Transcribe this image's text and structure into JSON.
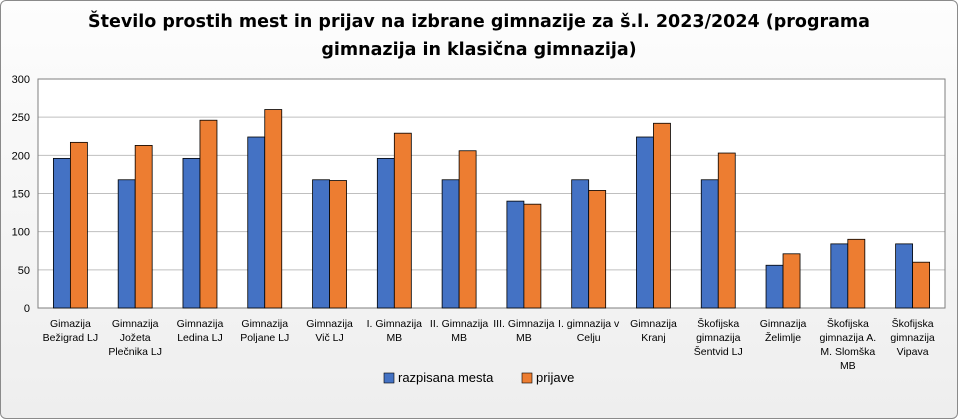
{
  "chart_data": {
    "type": "bar",
    "title_lines": [
      "Število prostih mest in prijav na izbrane gimnazije za š.l. 2023/2024 (programa",
      "gimnazija  in klasična gimnazija)"
    ],
    "categories": [
      [
        "Gimazija",
        "Bežigrad LJ"
      ],
      [
        "Gimnazija",
        "Jožeta",
        "Plečnika LJ"
      ],
      [
        "Gimnazija",
        "Ledina LJ"
      ],
      [
        "Gimnazija",
        "Poljane LJ"
      ],
      [
        "Gimnazija",
        "Vič LJ"
      ],
      [
        "I. Gimnazija",
        "MB"
      ],
      [
        "II. Gimnazija",
        "MB"
      ],
      [
        "III. Gimnazija",
        "MB"
      ],
      [
        "I. gimnazija v",
        "Celju"
      ],
      [
        "Gimnazija",
        "Kranj"
      ],
      [
        "Škofijska",
        "gimnazija",
        "Šentvid LJ"
      ],
      [
        "Gimnazija",
        "Želimlje"
      ],
      [
        "Škofijska",
        "gimnazija A.",
        "M. Slomška",
        "MB"
      ],
      [
        "Škofijska",
        "gimnazija",
        "Vipava"
      ]
    ],
    "series": [
      {
        "name": "razpisana mesta",
        "color": "#4472C4",
        "values": [
          196,
          168,
          196,
          224,
          168,
          196,
          168,
          140,
          168,
          224,
          168,
          56,
          84,
          84
        ]
      },
      {
        "name": "prijave",
        "color": "#ED7D31",
        "values": [
          217,
          213,
          246,
          260,
          167,
          229,
          206,
          136,
          154,
          242,
          203,
          71,
          90,
          60
        ]
      }
    ],
    "ylim": [
      0,
      300
    ],
    "yticks": [
      0,
      50,
      100,
      150,
      200,
      250,
      300
    ],
    "grid": true,
    "legend": "bottom"
  }
}
